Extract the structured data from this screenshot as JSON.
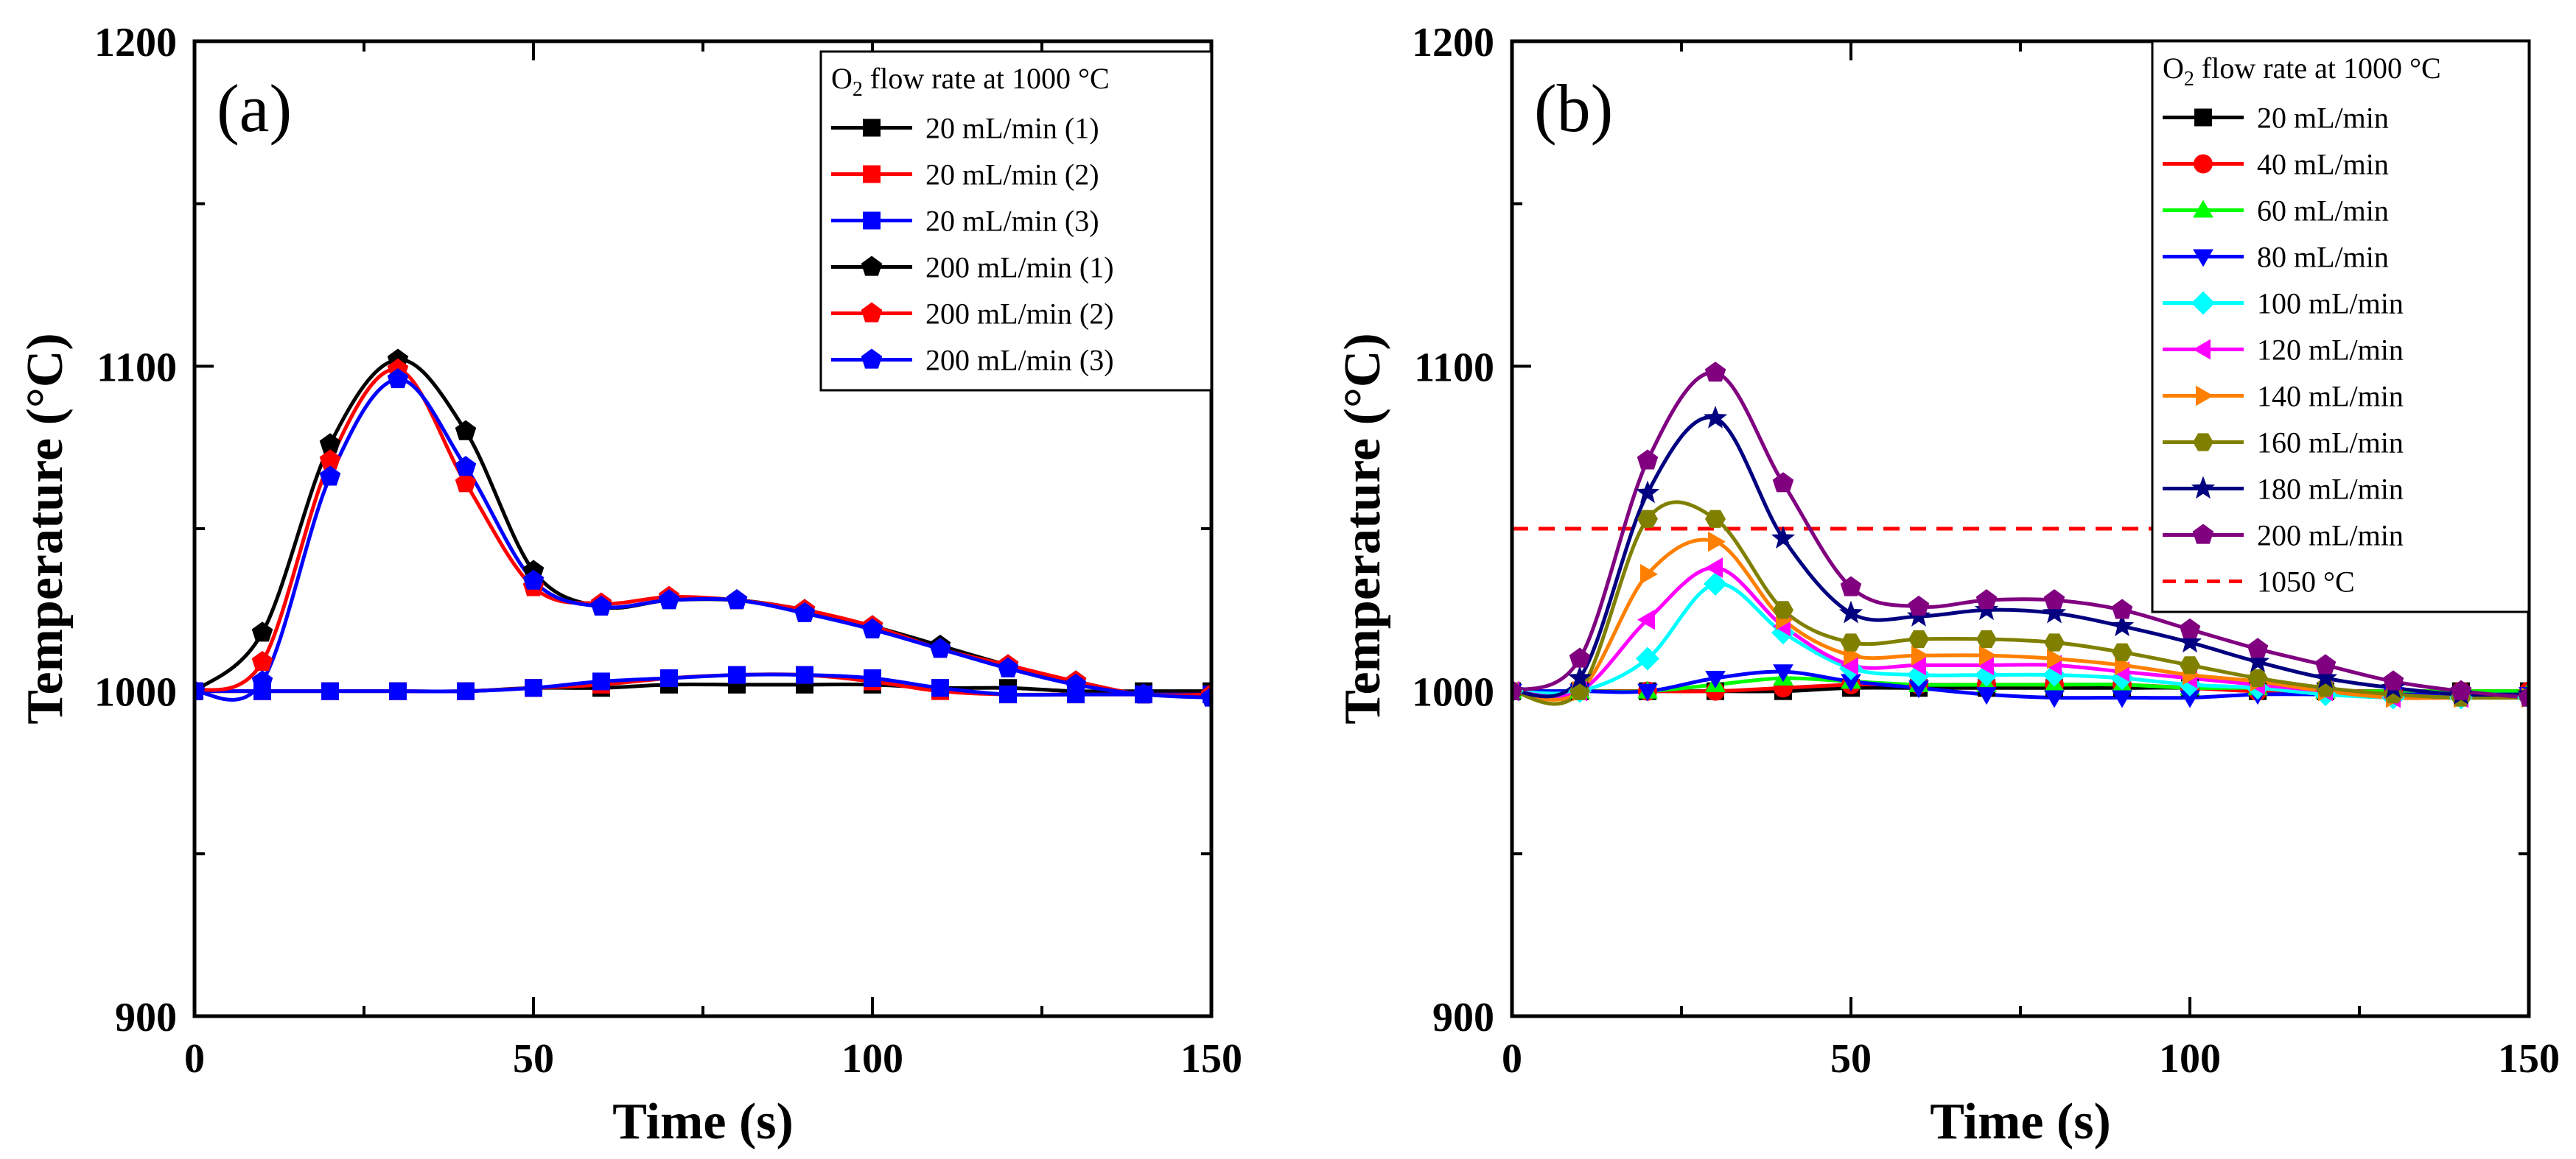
{
  "chart_data": [
    {
      "type": "line",
      "panel_label": "(a)",
      "xlabel": "Time (s)",
      "ylabel": "Temperature (°C)",
      "xlim": [
        0,
        150
      ],
      "ylim": [
        900,
        1200
      ],
      "xticks": [
        0,
        50,
        100,
        150
      ],
      "yticks": [
        900,
        1000,
        1100,
        1200
      ],
      "x_tick_labels": [
        "0",
        "50",
        "100",
        "150"
      ],
      "y_tick_labels": [
        "900",
        "1000",
        "1100",
        "1200"
      ],
      "legend": {
        "placement": "top-right",
        "title_prefix": "O",
        "title_sub": "2",
        "title_suffix": " flow rate at 1000 °C"
      },
      "x": [
        0,
        10,
        20,
        30,
        40,
        50,
        60,
        70,
        80,
        90,
        100,
        110,
        120,
        130,
        140,
        150
      ],
      "series": [
        {
          "name": "20 mL/min   (1)",
          "color": "#000000",
          "marker": "square",
          "values": [
            1000,
            1000,
            1000,
            1000,
            1000,
            1001,
            1001,
            1002,
            1002,
            1002,
            1002,
            1001,
            1001,
            1000,
            1000,
            1000
          ]
        },
        {
          "name": "20 mL/min   (2)",
          "color": "#ff0000",
          "marker": "square",
          "values": [
            1000,
            1000,
            1000,
            1000,
            1000,
            1001,
            1002,
            1004,
            1005,
            1005,
            1003,
            1000,
            999,
            999,
            999,
            999
          ]
        },
        {
          "name": "20 mL/min   (3)",
          "color": "#0000ff",
          "marker": "square",
          "values": [
            1000,
            1000,
            1000,
            1000,
            1000,
            1001,
            1003,
            1004,
            1005,
            1005,
            1004,
            1001,
            999,
            999,
            999,
            999
          ]
        },
        {
          "name": "200 mL/min (1)",
          "color": "#000000",
          "marker": "pentagon",
          "values": [
            1000,
            1018,
            1076,
            1102,
            1080,
            1037,
            1026,
            1028,
            1028,
            1025,
            1020,
            1014,
            1008,
            1003,
            999,
            999
          ]
        },
        {
          "name": "200 mL/min (2)",
          "color": "#ff0000",
          "marker": "pentagon",
          "values": [
            1000,
            1009,
            1071,
            1099,
            1064,
            1032,
            1027,
            1029,
            1028,
            1025,
            1020,
            1013,
            1008,
            1003,
            999,
            999
          ]
        },
        {
          "name": "200 mL/min (3)",
          "color": "#0000ff",
          "marker": "pentagon",
          "values": [
            1000,
            1003,
            1066,
            1096,
            1069,
            1034,
            1026,
            1028,
            1028,
            1024,
            1019,
            1013,
            1007,
            1002,
            999,
            998
          ]
        }
      ]
    },
    {
      "type": "line",
      "panel_label": "(b)",
      "xlabel": "Time (s)",
      "ylabel": "Temperature (°C)",
      "xlim": [
        0,
        150
      ],
      "ylim": [
        900,
        1200
      ],
      "xticks": [
        0,
        50,
        100,
        150
      ],
      "yticks": [
        900,
        1000,
        1100,
        1200
      ],
      "x_tick_labels": [
        "0",
        "50",
        "100",
        "150"
      ],
      "y_tick_labels": [
        "900",
        "1000",
        "1100",
        "1200"
      ],
      "legend": {
        "placement": "top-right",
        "title_prefix": "O",
        "title_sub": "2",
        "title_suffix": " flow rate at 1000 °C"
      },
      "x": [
        0,
        10,
        20,
        30,
        40,
        50,
        60,
        70,
        80,
        90,
        100,
        110,
        120,
        130,
        140,
        150
      ],
      "series": [
        {
          "name": "20 mL/min",
          "color": "#000000",
          "marker": "square",
          "values": [
            1000,
            1000,
            1000,
            1000,
            1000,
            1001,
            1001,
            1001,
            1001,
            1001,
            1001,
            1000,
            1000,
            1000,
            1000,
            1000
          ]
        },
        {
          "name": "40 mL/min",
          "color": "#ff0000",
          "marker": "circle",
          "values": [
            1000,
            1000,
            1000,
            1000,
            1001,
            1002,
            1002,
            1002,
            1002,
            1002,
            1001,
            1000,
            1000,
            1000,
            1000,
            1000
          ]
        },
        {
          "name": "60 mL/min",
          "color": "#00ff00",
          "marker": "triangle-up",
          "values": [
            1000,
            1000,
            1000,
            1002,
            1004,
            1003,
            1002,
            1002,
            1002,
            1002,
            1001,
            1001,
            1000,
            1000,
            1000,
            1000
          ]
        },
        {
          "name": "80 mL/min",
          "color": "#0000ff",
          "marker": "triangle-down",
          "values": [
            1000,
            1000,
            1000,
            1004,
            1006,
            1003,
            1001,
            999,
            998,
            998,
            998,
            999,
            999,
            999,
            999,
            999
          ]
        },
        {
          "name": "100 mL/min",
          "color": "#00ffff",
          "marker": "diamond",
          "values": [
            1000,
            1000,
            1010,
            1033,
            1018,
            1007,
            1005,
            1005,
            1005,
            1004,
            1002,
            1001,
            999,
            998,
            998,
            998
          ]
        },
        {
          "name": "120 mL/min",
          "color": "#ff00ff",
          "marker": "triangle-left",
          "values": [
            1000,
            1000,
            1022,
            1038,
            1020,
            1008,
            1008,
            1008,
            1008,
            1006,
            1004,
            1002,
            1000,
            998,
            998,
            998
          ]
        },
        {
          "name": "140 mL/min",
          "color": "#ff8000",
          "marker": "triangle-right",
          "values": [
            1000,
            1000,
            1036,
            1046,
            1022,
            1011,
            1011,
            1011,
            1010,
            1008,
            1005,
            1003,
            1000,
            998,
            998,
            998
          ]
        },
        {
          "name": "160 mL/min",
          "color": "#808000",
          "marker": "hexagon",
          "values": [
            1000,
            1000,
            1053,
            1053,
            1025,
            1015,
            1016,
            1016,
            1015,
            1012,
            1008,
            1004,
            1001,
            999,
            998,
            998
          ]
        },
        {
          "name": "180 mL/min",
          "color": "#000080",
          "marker": "star",
          "values": [
            1000,
            1004,
            1061,
            1084,
            1047,
            1024,
            1023,
            1025,
            1024,
            1020,
            1015,
            1009,
            1004,
            1001,
            999,
            999
          ]
        },
        {
          "name": "200 mL/min",
          "color": "#800080",
          "marker": "pentagon",
          "values": [
            1000,
            1010,
            1071,
            1098,
            1064,
            1032,
            1026,
            1028,
            1028,
            1025,
            1019,
            1013,
            1008,
            1003,
            1000,
            998
          ]
        }
      ],
      "reference_line": {
        "name": "1050 °C",
        "value": 1050,
        "color": "#ff0000",
        "style": "dashed"
      }
    }
  ]
}
